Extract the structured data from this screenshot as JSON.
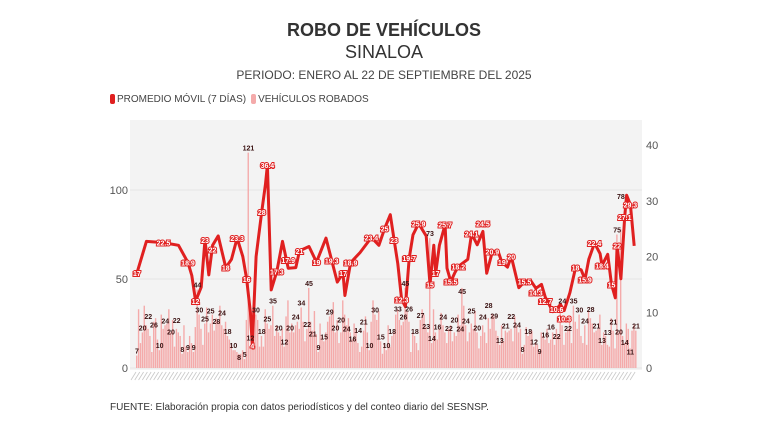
{
  "chart_data": {
    "type": "bar+line",
    "title": "ROBO DE VEHÍCULOS",
    "subtitle": "SINALOA",
    "period": "PERIODO: ENERO AL 22 DE SEPTIEMBRE DEL 2025",
    "legend": [
      "PROMEDIO MÓVIL (7 DÍAS)",
      "VEHÍCULOS ROBADOS"
    ],
    "legend_position": "top-left",
    "colors": {
      "moving_average": "#e02020",
      "bars": "#f4aaaa",
      "plot_bg": "#f3f3f3"
    },
    "left_axis": {
      "ticks": [
        0,
        50,
        100
      ],
      "range": [
        0,
        128
      ]
    },
    "right_axis": {
      "ticks": [
        0,
        10,
        20,
        30,
        40
      ],
      "range": [
        0,
        40
      ]
    },
    "series": [
      {
        "name": "VEHÍCULOS ROBADOS",
        "axis": "left",
        "type": "bar",
        "months": {
          "enero": [
            7,
            33,
            14,
            20,
            35,
            24,
            22,
            18,
            9,
            26,
            28,
            16,
            10,
            30,
            22,
            24,
            25,
            33,
            20,
            27,
            12,
            22,
            20,
            18,
            8,
            24,
            12,
            9,
            18,
            14,
            9
          ],
          "febrero": [
            23,
            44,
            30,
            22,
            13,
            25,
            34,
            20,
            25,
            30,
            21,
            28,
            26,
            35,
            24,
            22,
            26,
            18,
            16,
            13,
            10,
            10,
            9,
            8,
            8,
            10,
            5,
            27
          ],
          "marzo": [
            121,
            12,
            24,
            28,
            30,
            27,
            12,
            18,
            12,
            33,
            25,
            22,
            24,
            35,
            18,
            24,
            20,
            18,
            22,
            12,
            29,
            38,
            20,
            25,
            20,
            24,
            26,
            22,
            34,
            26,
            15
          ],
          "abril": [
            22,
            45,
            26,
            21,
            32,
            19,
            9,
            25,
            18,
            15,
            20,
            26,
            29,
            30,
            37,
            20,
            27,
            14,
            20,
            38,
            30,
            24,
            28,
            20,
            16,
            25,
            22,
            14,
            9,
            12
          ],
          "mayo": [
            21,
            29,
            20,
            10,
            26,
            38,
            30,
            27,
            32,
            15,
            8,
            14,
            10,
            24,
            12,
            18,
            20,
            30,
            33,
            27,
            24,
            26,
            45,
            32,
            26,
            9,
            20,
            18,
            14,
            10,
            27
          ],
          "junio": [
            33,
            30,
            23,
            20,
            73,
            14,
            33,
            20,
            16,
            22,
            31,
            24,
            20,
            14,
            22,
            24,
            15,
            20,
            18,
            30,
            24,
            45,
            35,
            24,
            15,
            20,
            25,
            22,
            32,
            20
          ],
          "julio": [
            11,
            18,
            24,
            20,
            14,
            28,
            22,
            30,
            29,
            21,
            18,
            13,
            24,
            15,
            21,
            20,
            21,
            22,
            15,
            29,
            24,
            20,
            22,
            8,
            13,
            23,
            18,
            20,
            21,
            12,
            14
          ],
          "agosto": [
            13,
            9,
            20,
            18,
            16,
            22,
            14,
            16,
            20,
            13,
            22,
            18,
            32,
            24,
            13,
            20,
            22,
            28,
            14,
            35,
            26,
            22,
            30,
            18,
            14,
            24,
            13,
            32,
            28,
            25,
            20
          ],
          "septiembre": [
            21,
            22,
            30,
            13,
            20,
            18,
            13,
            12,
            28,
            21,
            11,
            75,
            20,
            78,
            18,
            14,
            25,
            22,
            11,
            21,
            24,
            21
          ]
        }
      },
      {
        "name": "PROMEDIO MÓVIL (7 DÍAS)",
        "axis": "right",
        "type": "line",
        "points_day_value": [
          [
            1,
            17
          ],
          [
            6,
            22.7
          ],
          [
            15,
            22.5
          ],
          [
            23,
            22
          ],
          [
            28,
            18.9
          ],
          [
            30,
            16.6
          ],
          [
            32,
            12
          ],
          [
            35,
            14.5
          ],
          [
            37,
            23
          ],
          [
            39,
            16.7
          ],
          [
            41,
            22
          ],
          [
            44,
            23.7
          ],
          [
            48,
            18
          ],
          [
            51,
            19.5
          ],
          [
            54,
            23.3
          ],
          [
            57,
            20
          ],
          [
            59,
            16
          ],
          [
            61,
            10
          ],
          [
            62,
            4
          ],
          [
            64,
            20
          ],
          [
            67,
            28
          ],
          [
            69,
            33
          ],
          [
            70,
            36.4
          ],
          [
            72,
            14
          ],
          [
            75,
            17.3
          ],
          [
            78,
            22.7
          ],
          [
            81,
            17.9
          ],
          [
            85,
            18
          ],
          [
            87,
            21
          ],
          [
            92,
            21.8
          ],
          [
            96,
            19
          ],
          [
            101,
            23.3
          ],
          [
            104,
            19.3
          ],
          [
            107,
            15.4
          ],
          [
            110,
            17
          ],
          [
            111,
            13
          ],
          [
            114,
            18.9
          ],
          [
            119,
            20.7
          ],
          [
            125,
            23.4
          ],
          [
            129,
            22
          ],
          [
            132,
            25
          ],
          [
            135,
            27.5
          ],
          [
            137,
            23
          ],
          [
            139,
            18.7
          ],
          [
            141,
            12.3
          ],
          [
            143,
            11
          ],
          [
            145,
            19.7
          ],
          [
            147,
            23.9
          ],
          [
            150,
            25.9
          ],
          [
            154,
            23.7
          ],
          [
            156,
            15
          ],
          [
            158,
            22
          ],
          [
            159,
            17
          ],
          [
            161,
            22
          ],
          [
            164,
            25.7
          ],
          [
            165,
            17.9
          ],
          [
            167,
            15.5
          ],
          [
            169,
            17
          ],
          [
            171,
            18.2
          ],
          [
            176,
            19.5
          ],
          [
            178,
            24.1
          ],
          [
            181,
            22.1
          ],
          [
            184,
            24.5
          ],
          [
            186,
            17
          ],
          [
            189,
            20.9
          ],
          [
            192,
            21
          ],
          [
            194,
            19
          ],
          [
            197,
            18.1
          ],
          [
            199,
            20
          ],
          [
            203,
            14.4
          ],
          [
            206,
            15.5
          ],
          [
            209,
            15.8
          ],
          [
            212,
            14.3
          ],
          [
            215,
            15
          ],
          [
            217,
            12.7
          ],
          [
            221,
            10.1
          ],
          [
            223,
            10.6
          ],
          [
            225,
            11.4
          ],
          [
            227,
            10.3
          ],
          [
            230,
            13.5
          ],
          [
            233,
            18
          ],
          [
            236,
            17.6
          ],
          [
            238,
            15.9
          ],
          [
            240,
            19.5
          ],
          [
            243,
            22.4
          ],
          [
            246,
            20.5
          ],
          [
            247,
            18.4
          ],
          [
            250,
            20.4
          ],
          [
            252,
            15
          ],
          [
            254,
            12.6
          ],
          [
            255,
            22
          ],
          [
            257,
            16
          ],
          [
            259,
            27.1
          ],
          [
            260,
            31
          ],
          [
            262,
            29.3
          ],
          [
            264,
            21.9
          ]
        ]
      }
    ]
  },
  "footer": "FUENTE: Elaboración propia con datos periodísticos y del conteo diario del SESNSP."
}
